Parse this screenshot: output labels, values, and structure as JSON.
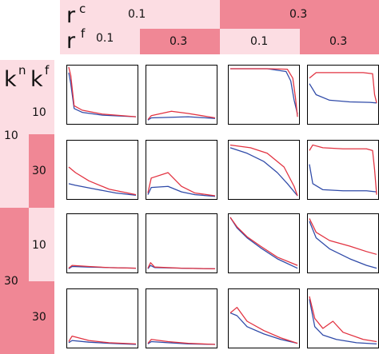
{
  "colors": {
    "light_pink": "#fcdde3",
    "dark_pink": "#f08795",
    "red_line": "#e23240",
    "blue_line": "#2f4aa8"
  },
  "header": {
    "rc_main": "r",
    "rc_sup": "c",
    "rf_main": "r",
    "rf_sup": "f",
    "rc_low": "0.1",
    "rc_high": "0.3",
    "rf_low_a": "0.1",
    "rf_high_a": "0.3",
    "rf_low_b": "0.1",
    "rf_high_b": "0.3"
  },
  "side": {
    "kn_main": "k",
    "kn_sup": "n",
    "kf_main": "k",
    "kf_sup": "f",
    "kn_low": "10",
    "kn_high": "30",
    "kf_low_a": "10",
    "kf_high_a": "30",
    "kf_low_b": "10",
    "kf_high_b": "30"
  },
  "chart_data": {
    "type": "line",
    "layout": "4x4 small multiples (rows: k^n, k^f; columns: r^c, r^f)",
    "series_colors": [
      "red",
      "blue"
    ],
    "ylim": [
      0,
      1
    ],
    "xlim": [
      0,
      1
    ],
    "panels": [
      [
        {
          "red": [
            [
              0,
              1.0
            ],
            [
              0.03,
              0.85
            ],
            [
              0.08,
              0.3
            ],
            [
              0.2,
              0.22
            ],
            [
              0.5,
              0.15
            ],
            [
              1,
              0.1
            ]
          ],
          "blue": [
            [
              0,
              0.9
            ],
            [
              0.03,
              0.7
            ],
            [
              0.08,
              0.25
            ],
            [
              0.2,
              0.18
            ],
            [
              0.5,
              0.13
            ],
            [
              1,
              0.1
            ]
          ]
        },
        {
          "red": [
            [
              0,
              0.05
            ],
            [
              0.05,
              0.12
            ],
            [
              0.35,
              0.2
            ],
            [
              0.6,
              0.16
            ],
            [
              1,
              0.08
            ]
          ],
          "blue": [
            [
              0,
              0.04
            ],
            [
              0.05,
              0.08
            ],
            [
              0.3,
              0.09
            ],
            [
              0.6,
              0.1
            ],
            [
              1,
              0.07
            ]
          ]
        },
        {
          "red": [
            [
              0,
              0.97
            ],
            [
              0.55,
              0.97
            ],
            [
              0.85,
              0.96
            ],
            [
              0.93,
              0.8
            ],
            [
              0.97,
              0.45
            ],
            [
              1,
              0.1
            ]
          ],
          "blue": [
            [
              0,
              0.97
            ],
            [
              0.55,
              0.97
            ],
            [
              0.83,
              0.92
            ],
            [
              0.9,
              0.75
            ],
            [
              0.95,
              0.4
            ],
            [
              1,
              0.15
            ]
          ]
        },
        {
          "red": [
            [
              0,
              0.8
            ],
            [
              0.1,
              0.9
            ],
            [
              0.4,
              0.9
            ],
            [
              0.8,
              0.9
            ],
            [
              0.94,
              0.88
            ],
            [
              0.97,
              0.5
            ],
            [
              1,
              0.35
            ]
          ],
          "blue": [
            [
              0,
              0.7
            ],
            [
              0.1,
              0.5
            ],
            [
              0.3,
              0.4
            ],
            [
              0.6,
              0.37
            ],
            [
              0.9,
              0.36
            ],
            [
              1,
              0.35
            ]
          ]
        }
      ],
      [
        {
          "red": [
            [
              0,
              0.55
            ],
            [
              0.1,
              0.45
            ],
            [
              0.3,
              0.3
            ],
            [
              0.6,
              0.15
            ],
            [
              1,
              0.05
            ]
          ],
          "blue": [
            [
              0,
              0.25
            ],
            [
              0.1,
              0.22
            ],
            [
              0.4,
              0.15
            ],
            [
              0.7,
              0.08
            ],
            [
              1,
              0.04
            ]
          ]
        },
        {
          "red": [
            [
              0,
              0.08
            ],
            [
              0.05,
              0.35
            ],
            [
              0.3,
              0.45
            ],
            [
              0.5,
              0.2
            ],
            [
              0.7,
              0.08
            ],
            [
              1,
              0.03
            ]
          ],
          "blue": [
            [
              0,
              0.05
            ],
            [
              0.05,
              0.18
            ],
            [
              0.3,
              0.2
            ],
            [
              0.5,
              0.1
            ],
            [
              0.7,
              0.05
            ],
            [
              1,
              0.02
            ]
          ]
        },
        {
          "red": [
            [
              0,
              0.95
            ],
            [
              0.3,
              0.9
            ],
            [
              0.55,
              0.8
            ],
            [
              0.8,
              0.55
            ],
            [
              0.95,
              0.2
            ],
            [
              1,
              0.03
            ]
          ],
          "blue": [
            [
              0,
              0.9
            ],
            [
              0.25,
              0.8
            ],
            [
              0.5,
              0.65
            ],
            [
              0.7,
              0.45
            ],
            [
              0.85,
              0.25
            ],
            [
              1,
              0.03
            ]
          ]
        },
        {
          "red": [
            [
              0,
              0.85
            ],
            [
              0.05,
              0.95
            ],
            [
              0.2,
              0.9
            ],
            [
              0.5,
              0.88
            ],
            [
              0.85,
              0.88
            ],
            [
              0.94,
              0.85
            ],
            [
              0.97,
              0.5
            ],
            [
              1,
              0.05
            ]
          ],
          "blue": [
            [
              0,
              0.6
            ],
            [
              0.05,
              0.25
            ],
            [
              0.2,
              0.14
            ],
            [
              0.5,
              0.12
            ],
            [
              0.85,
              0.12
            ],
            [
              1,
              0.1
            ]
          ]
        }
      ],
      [
        {
          "red": [
            [
              0,
              0.05
            ],
            [
              0.05,
              0.1
            ],
            [
              0.3,
              0.08
            ],
            [
              0.6,
              0.06
            ],
            [
              1,
              0.05
            ]
          ],
          "blue": [
            [
              0,
              0.04
            ],
            [
              0.05,
              0.08
            ],
            [
              0.3,
              0.07
            ],
            [
              0.6,
              0.06
            ],
            [
              1,
              0.05
            ]
          ]
        },
        {
          "red": [
            [
              0,
              0.05
            ],
            [
              0.04,
              0.15
            ],
            [
              0.1,
              0.07
            ],
            [
              0.5,
              0.05
            ],
            [
              1,
              0.04
            ]
          ],
          "blue": [
            [
              0,
              0.04
            ],
            [
              0.04,
              0.1
            ],
            [
              0.1,
              0.06
            ],
            [
              0.5,
              0.05
            ],
            [
              1,
              0.04
            ]
          ]
        },
        {
          "red": [
            [
              0,
              0.97
            ],
            [
              0.1,
              0.8
            ],
            [
              0.25,
              0.62
            ],
            [
              0.45,
              0.45
            ],
            [
              0.7,
              0.25
            ],
            [
              1,
              0.1
            ]
          ],
          "blue": [
            [
              0,
              0.97
            ],
            [
              0.1,
              0.78
            ],
            [
              0.25,
              0.6
            ],
            [
              0.45,
              0.42
            ],
            [
              0.7,
              0.22
            ],
            [
              1,
              0.05
            ]
          ]
        },
        {
          "red": [
            [
              0,
              0.95
            ],
            [
              0.1,
              0.7
            ],
            [
              0.3,
              0.55
            ],
            [
              0.6,
              0.45
            ],
            [
              0.85,
              0.35
            ],
            [
              1,
              0.3
            ]
          ],
          "blue": [
            [
              0,
              0.9
            ],
            [
              0.1,
              0.6
            ],
            [
              0.3,
              0.4
            ],
            [
              0.6,
              0.22
            ],
            [
              0.85,
              0.1
            ],
            [
              1,
              0.05
            ]
          ]
        }
      ],
      [
        {
          "red": [
            [
              0,
              0.08
            ],
            [
              0.05,
              0.18
            ],
            [
              0.3,
              0.1
            ],
            [
              0.6,
              0.06
            ],
            [
              1,
              0.04
            ]
          ],
          "blue": [
            [
              0,
              0.06
            ],
            [
              0.05,
              0.1
            ],
            [
              0.3,
              0.07
            ],
            [
              0.6,
              0.05
            ],
            [
              1,
              0.03
            ]
          ]
        },
        {
          "red": [
            [
              0,
              0.05
            ],
            [
              0.05,
              0.12
            ],
            [
              0.3,
              0.08
            ],
            [
              0.6,
              0.05
            ],
            [
              1,
              0.03
            ]
          ],
          "blue": [
            [
              0,
              0.04
            ],
            [
              0.05,
              0.08
            ],
            [
              0.3,
              0.06
            ],
            [
              0.6,
              0.04
            ],
            [
              1,
              0.03
            ]
          ]
        },
        {
          "red": [
            [
              0,
              0.6
            ],
            [
              0.1,
              0.7
            ],
            [
              0.25,
              0.45
            ],
            [
              0.5,
              0.28
            ],
            [
              0.75,
              0.15
            ],
            [
              1,
              0.05
            ]
          ],
          "blue": [
            [
              0,
              0.6
            ],
            [
              0.1,
              0.55
            ],
            [
              0.25,
              0.35
            ],
            [
              0.5,
              0.22
            ],
            [
              0.75,
              0.12
            ],
            [
              1,
              0.05
            ]
          ]
        },
        {
          "red": [
            [
              0,
              0.9
            ],
            [
              0.08,
              0.5
            ],
            [
              0.2,
              0.32
            ],
            [
              0.35,
              0.45
            ],
            [
              0.5,
              0.25
            ],
            [
              0.8,
              0.12
            ],
            [
              1,
              0.08
            ]
          ],
          "blue": [
            [
              0,
              0.85
            ],
            [
              0.08,
              0.35
            ],
            [
              0.2,
              0.2
            ],
            [
              0.4,
              0.12
            ],
            [
              0.7,
              0.06
            ],
            [
              1,
              0.04
            ]
          ]
        }
      ]
    ]
  }
}
